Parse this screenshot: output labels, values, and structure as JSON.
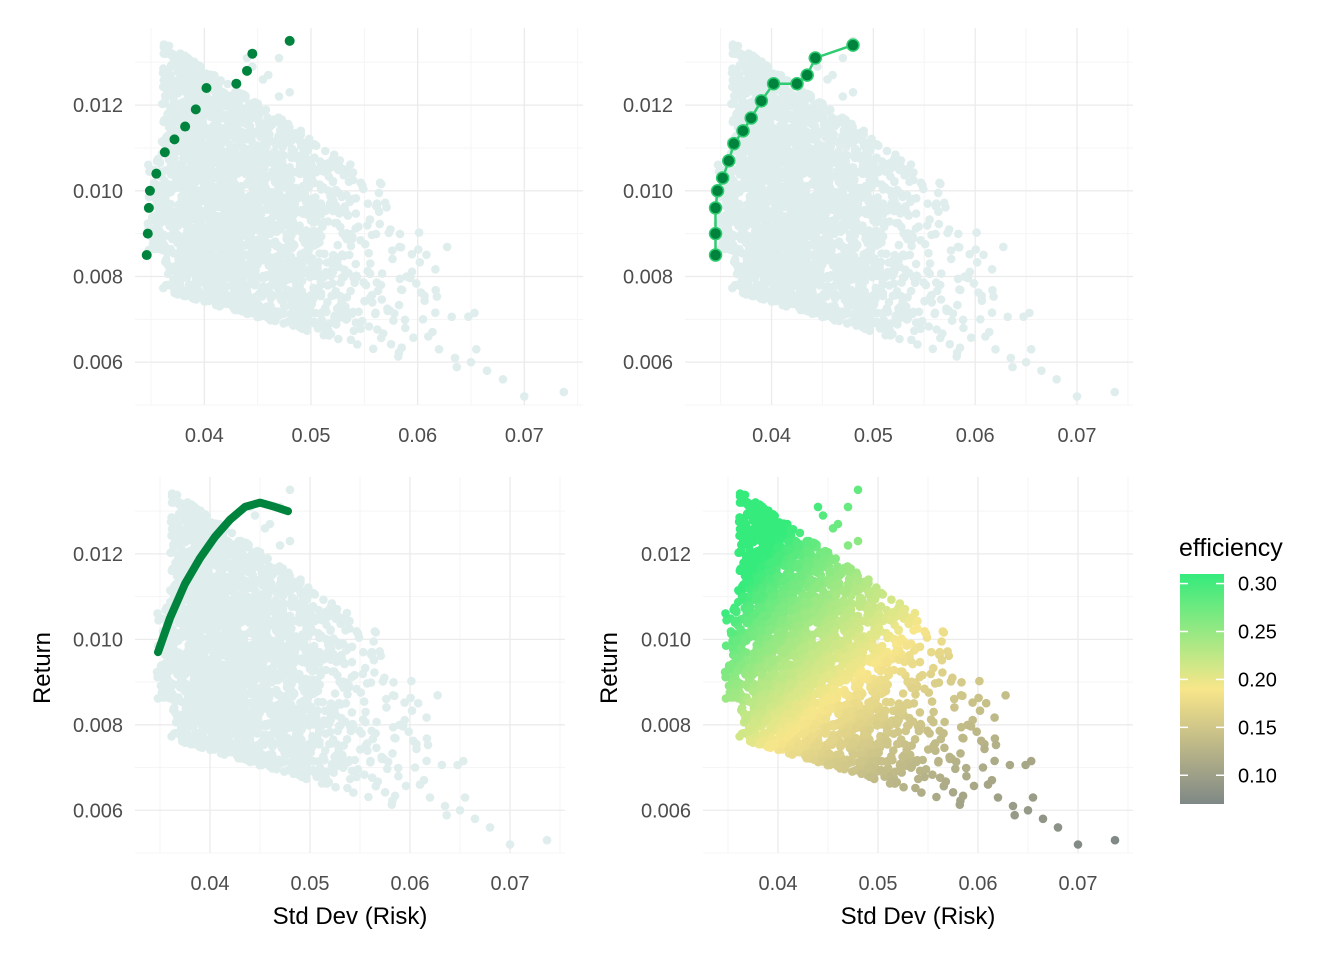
{
  "colors": {
    "cloud": "#dfeded",
    "frontier": "#00843d",
    "frontier_line": "#2ecc71",
    "grid_major": "#ebebeb",
    "grid_minor": "#f5f5f5",
    "gradient": [
      "#7f8886",
      "#f8e68a",
      "#34eb7c"
    ]
  },
  "legend": {
    "title": "efficiency",
    "ticks": [
      "0.10",
      "0.15",
      "0.20",
      "0.25",
      "0.30"
    ]
  },
  "chart_data": [
    {
      "type": "scatter",
      "panel": "top-left",
      "xlabel": "",
      "ylabel": "",
      "xlim": [
        0.0335,
        0.0755
      ],
      "ylim": [
        0.005,
        0.0138
      ],
      "x_ticks": [
        "0.04",
        "0.05",
        "0.06",
        "0.07"
      ],
      "y_ticks": [
        "0.006",
        "0.008",
        "0.010",
        "0.012"
      ],
      "cloud_extent": {
        "risk_min": 0.0345,
        "risk_max": 0.0737,
        "return_min": 0.0052,
        "return_max": 0.0135
      },
      "frontier_points": [
        {
          "x": 0.0346,
          "y": 0.0085
        },
        {
          "x": 0.0347,
          "y": 0.009
        },
        {
          "x": 0.0348,
          "y": 0.0096
        },
        {
          "x": 0.0349,
          "y": 0.01
        },
        {
          "x": 0.0355,
          "y": 0.0104
        },
        {
          "x": 0.0363,
          "y": 0.0109
        },
        {
          "x": 0.0372,
          "y": 0.0112
        },
        {
          "x": 0.0382,
          "y": 0.0115
        },
        {
          "x": 0.0392,
          "y": 0.0119
        },
        {
          "x": 0.0402,
          "y": 0.0124
        },
        {
          "x": 0.043,
          "y": 0.0125
        },
        {
          "x": 0.044,
          "y": 0.0128
        },
        {
          "x": 0.0445,
          "y": 0.0132
        },
        {
          "x": 0.048,
          "y": 0.0135
        }
      ]
    },
    {
      "type": "scatter",
      "panel": "top-right",
      "xlabel": "",
      "ylabel": "",
      "xlim": [
        0.0315,
        0.0755
      ],
      "ylim": [
        0.005,
        0.0138
      ],
      "x_ticks": [
        "0.04",
        "0.05",
        "0.06",
        "0.07"
      ],
      "y_ticks": [
        "0.006",
        "0.008",
        "0.010",
        "0.012"
      ],
      "cloud_extent": {
        "risk_min": 0.0345,
        "risk_max": 0.0737,
        "return_min": 0.0052,
        "return_max": 0.0135
      },
      "frontier_points": [
        {
          "x": 0.0345,
          "y": 0.0085
        },
        {
          "x": 0.0345,
          "y": 0.009
        },
        {
          "x": 0.0345,
          "y": 0.0096
        },
        {
          "x": 0.0347,
          "y": 0.01
        },
        {
          "x": 0.0352,
          "y": 0.0103
        },
        {
          "x": 0.0358,
          "y": 0.0107
        },
        {
          "x": 0.0363,
          "y": 0.0111
        },
        {
          "x": 0.0372,
          "y": 0.0114
        },
        {
          "x": 0.038,
          "y": 0.0117
        },
        {
          "x": 0.039,
          "y": 0.0121
        },
        {
          "x": 0.0402,
          "y": 0.0125
        },
        {
          "x": 0.0425,
          "y": 0.0125
        },
        {
          "x": 0.0435,
          "y": 0.0127
        },
        {
          "x": 0.0443,
          "y": 0.0131
        },
        {
          "x": 0.048,
          "y": 0.0134
        }
      ]
    },
    {
      "type": "scatter",
      "panel": "bottom-left",
      "xlabel": "Std Dev (Risk)",
      "ylabel": "Return",
      "xlim": [
        0.0325,
        0.0755
      ],
      "ylim": [
        0.005,
        0.0138
      ],
      "x_ticks": [
        "0.04",
        "0.05",
        "0.06",
        "0.07"
      ],
      "y_ticks": [
        "0.006",
        "0.008",
        "0.010",
        "0.012"
      ],
      "cloud_extent": {
        "risk_min": 0.0345,
        "risk_max": 0.0737,
        "return_min": 0.0052,
        "return_max": 0.0135
      },
      "frontier_curve": [
        {
          "x": 0.0348,
          "y": 0.0097
        },
        {
          "x": 0.036,
          "y": 0.0105
        },
        {
          "x": 0.0375,
          "y": 0.0113
        },
        {
          "x": 0.039,
          "y": 0.0119
        },
        {
          "x": 0.0405,
          "y": 0.0124
        },
        {
          "x": 0.042,
          "y": 0.0128
        },
        {
          "x": 0.0435,
          "y": 0.0131
        },
        {
          "x": 0.045,
          "y": 0.0132
        },
        {
          "x": 0.0465,
          "y": 0.0131
        },
        {
          "x": 0.0478,
          "y": 0.013
        }
      ]
    },
    {
      "type": "scatter",
      "panel": "bottom-right",
      "xlabel": "Std Dev (Risk)",
      "ylabel": "Return",
      "xlim": [
        0.0325,
        0.0755
      ],
      "ylim": [
        0.005,
        0.0138
      ],
      "x_ticks": [
        "0.04",
        "0.05",
        "0.06",
        "0.07"
      ],
      "y_ticks": [
        "0.006",
        "0.008",
        "0.010",
        "0.012"
      ],
      "color_by": "efficiency",
      "color_range": [
        0.07,
        0.31
      ],
      "cloud_extent": {
        "risk_min": 0.0345,
        "risk_max": 0.0737,
        "return_min": 0.0052,
        "return_max": 0.0135
      }
    }
  ]
}
